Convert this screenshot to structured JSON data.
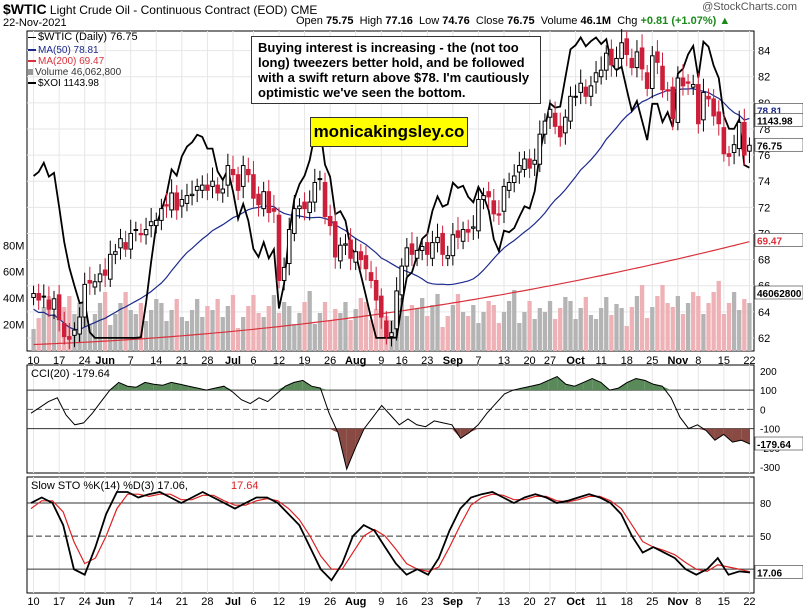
{
  "header": {
    "symbol": "$WTIC",
    "name": "Light Crude Oil - Continuous Contract (EOD)",
    "exchange": "CME",
    "date": "22-Nov-2021",
    "open_label": "Open",
    "open": "75.75",
    "high_label": "High",
    "high": "77.16",
    "low_label": "Low",
    "low": "74.76",
    "close_label": "Close",
    "close": "76.75",
    "volume_label": "Volume",
    "volume": "46.1M",
    "chg_label": "Chg",
    "chg": "+0.81 (+1.07%)",
    "chg_arrow": "▲",
    "watermark": "@StockCharts.com"
  },
  "legend": {
    "price": "$WTIC (Daily) 76.75",
    "ma50": "MA(50) 78.81",
    "ma200": "MA(200) 69.47",
    "volume": "Volume 46,062,800",
    "xoi": "$XOI 1143.98"
  },
  "annotation": "Buying interest is increasing - the (not too long) tweezers better hold, and be followed with a swift return above $78. I'm cautiously optimistic we've seen the bottom.",
  "brand": "monicakingsley.co",
  "indicators": {
    "cci_label": "CCI(20) -179.64",
    "sto_label_a": "Slow STO %K(14) %D(3) 17.06,",
    "sto_label_b": "17.64"
  },
  "colors": {
    "up": "#000000",
    "down": "#cc1f3a",
    "ma50": "#1c2a8c",
    "ma200": "#d8323c",
    "xoi": "#000000",
    "vol_gray": "#b4b4b4",
    "vol_pink": "#eeb1b6",
    "cci_pos": "#5a8a5a",
    "cci_neg": "#8a4a44",
    "sto_d": "#dd2222"
  },
  "chart_data": [
    {
      "type": "candlestick",
      "title": "$WTIC (Daily)",
      "x_tick_labels": [
        "10",
        "17",
        "24",
        "Jun",
        "7",
        "14",
        "21",
        "28",
        "Jul",
        "6",
        "12",
        "19",
        "26",
        "Aug",
        "9",
        "16",
        "23",
        "Sep",
        "7",
        "13",
        "20",
        "27",
        "Oct",
        "11",
        "18",
        "25",
        "Nov",
        "8",
        "15",
        "22"
      ],
      "y_tick_labels": [
        62,
        64,
        66,
        68,
        70,
        72,
        74,
        76,
        78,
        80,
        82,
        84
      ],
      "ylim": [
        61,
        85.5
      ],
      "closes": [
        65.4,
        64.9,
        65.2,
        64.2,
        65.0,
        63.4,
        62.1,
        61.9,
        62.6,
        63.6,
        66.1,
        66.2,
        66.3,
        66.9,
        66.8,
        68.4,
        68.6,
        69.6,
        68.8,
        70.0,
        70.3,
        69.9,
        70.3,
        70.9,
        71.0,
        71.9,
        72.1,
        73.1,
        71.8,
        72.6,
        72.9,
        73.0,
        73.6,
        73.7,
        73.3,
        74.0,
        73.1,
        73.4,
        75.2,
        74.5,
        73.3,
        75.2,
        74.5,
        72.7,
        72.2,
        73.2,
        71.6,
        71.7,
        66.4,
        67.4,
        70.3,
        71.9,
        72.1,
        71.9,
        72.4,
        73.9,
        74.2,
        71.3,
        70.6,
        68.2,
        69.1,
        69.2,
        68.1,
        68.6,
        68.0,
        67.3,
        66.4,
        64.9,
        63.6,
        62.1,
        62.4,
        65.6,
        67.5,
        68.9,
        68.4,
        68.7,
        69.0,
        68.4,
        69.3,
        69.7,
        68.4,
        68.3,
        69.9,
        69.7,
        70.3,
        70.1,
        70.5,
        72.6,
        72.9,
        72.8,
        71.5,
        71.4,
        73.6,
        73.9,
        74.4,
        75.2,
        75.7,
        75.0,
        75.6,
        77.6,
        78.6,
        79.5,
        78.2,
        77.4,
        78.9,
        80.5,
        80.5,
        81.5,
        80.5,
        81.3,
        82.3,
        82.5,
        83.8,
        82.9,
        83.4,
        84.6,
        83.7,
        82.7,
        83.9,
        82.6,
        81.1,
        83.6,
        83.1,
        81.0,
        80.9,
        78.8,
        81.9,
        81.3,
        81.5,
        81.4,
        78.4,
        80.8,
        80.3,
        79.0,
        78.4,
        76.1,
        75.9,
        76.8,
        78.5,
        76.0,
        76.75
      ]
    },
    {
      "type": "line",
      "name": "MA(50)",
      "last": 78.81
    },
    {
      "type": "line",
      "name": "MA(200)",
      "last": 69.47
    },
    {
      "type": "line",
      "name": "$XOI",
      "last": 1143.98
    },
    {
      "type": "bar",
      "name": "Volume",
      "y_tick_labels": [
        "20M",
        "40M",
        "60M",
        "80M"
      ],
      "last": 46062800,
      "last_label": "46062800"
    },
    {
      "type": "line",
      "name": "CCI(20)",
      "last_label": "-179.64",
      "last": -179.64,
      "y_tick_labels": [
        200,
        100,
        0,
        -100,
        -200,
        -300
      ],
      "values": [
        -20,
        10,
        40,
        60,
        -30,
        -80,
        -70,
        -20,
        40,
        100,
        140,
        120,
        115,
        140,
        130,
        125,
        140,
        130,
        120,
        110,
        100,
        110,
        120,
        90,
        50,
        30,
        60,
        40,
        80,
        120,
        140,
        150,
        120,
        110,
        -20,
        -120,
        -310,
        -200,
        -100,
        -40,
        20,
        -30,
        -80,
        -50,
        -80,
        -90,
        -60,
        -70,
        -80,
        -150,
        -120,
        -80,
        -20,
        30,
        80,
        100,
        110,
        120,
        130,
        150,
        170,
        130,
        120,
        140,
        160,
        140,
        100,
        110,
        140,
        160,
        150,
        130,
        120,
        60,
        -40,
        -100,
        -80,
        -110,
        -160,
        -130,
        -170,
        -160,
        -180
      ]
    },
    {
      "type": "line",
      "name": "Slow STO",
      "k_label": "17.06",
      "k": 17.06,
      "d": 17.64,
      "y_tick_labels": [
        80,
        50,
        20
      ],
      "k_values": [
        80,
        85,
        80,
        60,
        20,
        15,
        40,
        70,
        90,
        90,
        85,
        88,
        90,
        85,
        80,
        85,
        90,
        85,
        80,
        75,
        80,
        85,
        85,
        80,
        70,
        60,
        40,
        20,
        10,
        25,
        50,
        60,
        55,
        40,
        25,
        15,
        20,
        15,
        30,
        55,
        75,
        85,
        88,
        90,
        85,
        80,
        85,
        88,
        85,
        80,
        82,
        85,
        88,
        85,
        80,
        70,
        50,
        35,
        40,
        35,
        30,
        20,
        15,
        20,
        30,
        15,
        18,
        17
      ],
      "d_values": [
        75,
        82,
        82,
        72,
        45,
        25,
        30,
        50,
        75,
        88,
        88,
        86,
        88,
        88,
        83,
        83,
        87,
        87,
        82,
        78,
        78,
        82,
        84,
        82,
        75,
        65,
        50,
        32,
        20,
        20,
        35,
        50,
        56,
        50,
        38,
        25,
        20,
        18,
        22,
        40,
        60,
        78,
        85,
        88,
        87,
        83,
        83,
        86,
        86,
        82,
        81,
        83,
        86,
        86,
        82,
        75,
        60,
        45,
        40,
        37,
        33,
        26,
        20,
        18,
        24,
        22,
        20,
        17.64
      ]
    }
  ]
}
